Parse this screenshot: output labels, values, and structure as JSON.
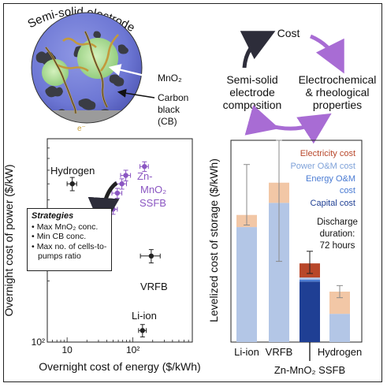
{
  "electrode": {
    "title": "Semi-solid electrode",
    "label_mno2": "MnO₂",
    "label_cb_line1": "Carbon",
    "label_cb_line2": "black",
    "label_cb_line3": "(CB)",
    "label_e": "e⁻"
  },
  "cycle": {
    "top": "Cost",
    "left_line1": "Semi-solid",
    "left_line2": "electrode",
    "left_line3": "composition",
    "right_line1": "Electrochemical",
    "right_line2": "& rheological",
    "right_line3": "properties",
    "colors": {
      "dark_arrow": "#2d2d3a",
      "purple_arrow": "#a86cd4"
    }
  },
  "strategies": {
    "title": "Strategies",
    "items": [
      "Max MnO₂ conc.",
      "Min CB conc.",
      "Max no. of cells-to-pumps ratio"
    ]
  },
  "chart_data": [
    {
      "type": "scatter",
      "xlabel": "Overnight cost of energy ($/kWh)",
      "ylabel": "Overnight cost of power ($/kW)",
      "x_scale": "log",
      "y_scale": "log",
      "xlim": [
        5,
        800
      ],
      "ylim": [
        100,
        1000
      ],
      "x_tick_labels": [
        "10",
        "10²"
      ],
      "y_tick_labels": [
        "10²"
      ],
      "series": [
        {
          "name": "Hydrogen",
          "color": "#222222",
          "points": [
            {
              "x": 12,
              "y": 600,
              "xerr": [
                10,
                14
              ],
              "yerr": [
                555,
                645
              ]
            }
          ]
        },
        {
          "name": "VRFB",
          "color": "#222222",
          "points": [
            {
              "x": 190,
              "y": 265,
              "xerr": [
                130,
                260
              ],
              "yerr": [
                245,
                285
              ]
            }
          ]
        },
        {
          "name": "Li-ion",
          "color": "#222222",
          "points": [
            {
              "x": 140,
              "y": 114,
              "xerr": [
                122,
                160
              ],
              "yerr": [
                106,
                122
              ]
            }
          ]
        },
        {
          "name": "Zn-MnO₂ SSFB",
          "color": "#8b56c2",
          "points": [
            {
              "x": 150,
              "y": 730,
              "xerr": [
                128,
                172
              ],
              "yerr": [
                690,
                770
              ]
            },
            {
              "x": 78,
              "y": 660,
              "xerr": [
                65,
                92
              ],
              "yerr": [
                620,
                700
              ]
            },
            {
              "x": 68,
              "y": 600,
              "xerr": [
                56,
                80
              ],
              "yerr": [
                565,
                635
              ]
            },
            {
              "x": 58,
              "y": 540,
              "xerr": [
                48,
                68
              ],
              "yerr": [
                510,
                570
              ]
            },
            {
              "x": 50,
              "y": 450,
              "xerr": [
                42,
                58
              ],
              "yerr": [
                425,
                475
              ]
            }
          ]
        }
      ],
      "annotations": {
        "hydrogen": "Hydrogen",
        "vrfb": "VRFB",
        "liion": "Li-ion",
        "znmno2_line1": "Zn-",
        "znmno2_line2": "MnO₂",
        "znmno2_line3": "SSFB"
      }
    },
    {
      "type": "bar",
      "stacked": true,
      "ylabel": "Levelized cost of storage ($/kWh)",
      "categories": [
        "Li-ion",
        "VRFB",
        "Zn-MnO₂ SSFB",
        "Hydrogen"
      ],
      "category_labels": {
        "liion": "Li-ion",
        "vrfb": "VRFB",
        "zn": "Zn-MnO₂ SSFB",
        "hydrogen": "Hydrogen"
      },
      "ylim": [
        0,
        1
      ],
      "series": [
        {
          "name": "Capital cost",
          "color": "#1f3f94",
          "values": [
            0,
            0,
            0.3,
            0
          ]
        },
        {
          "name": "Energy O&M cost",
          "color": "#4a7bd3",
          "values": [
            0,
            0,
            0.01,
            0
          ]
        },
        {
          "name": "Power O&M cost",
          "color": "#b3c6e6",
          "values": [
            0.57,
            0.69,
            0.01,
            0.14
          ]
        },
        {
          "name": "Electricity cost",
          "color": "#b8472a",
          "values": [
            0,
            0,
            0.07,
            0
          ]
        },
        {
          "name": "Other",
          "color": "#f2c7a6",
          "values": [
            0.06,
            0.1,
            0,
            0.11
          ]
        }
      ],
      "totals": [
        0.63,
        0.79,
        0.39,
        0.25
      ],
      "error_bars": [
        [
          0.58,
          0.88
        ],
        [
          0.4,
          1.0
        ],
        [
          0.34,
          0.45
        ],
        [
          0.22,
          0.28
        ]
      ],
      "legend": {
        "electricity": "Electricity cost",
        "power_om": "Power O&M cost",
        "energy_om_line1": "Energy O&M",
        "energy_om_line2": "cost",
        "capital": "Capital cost"
      },
      "note_line1": "Discharge",
      "note_line2": "duration:",
      "note_line3": "72 hours"
    }
  ]
}
